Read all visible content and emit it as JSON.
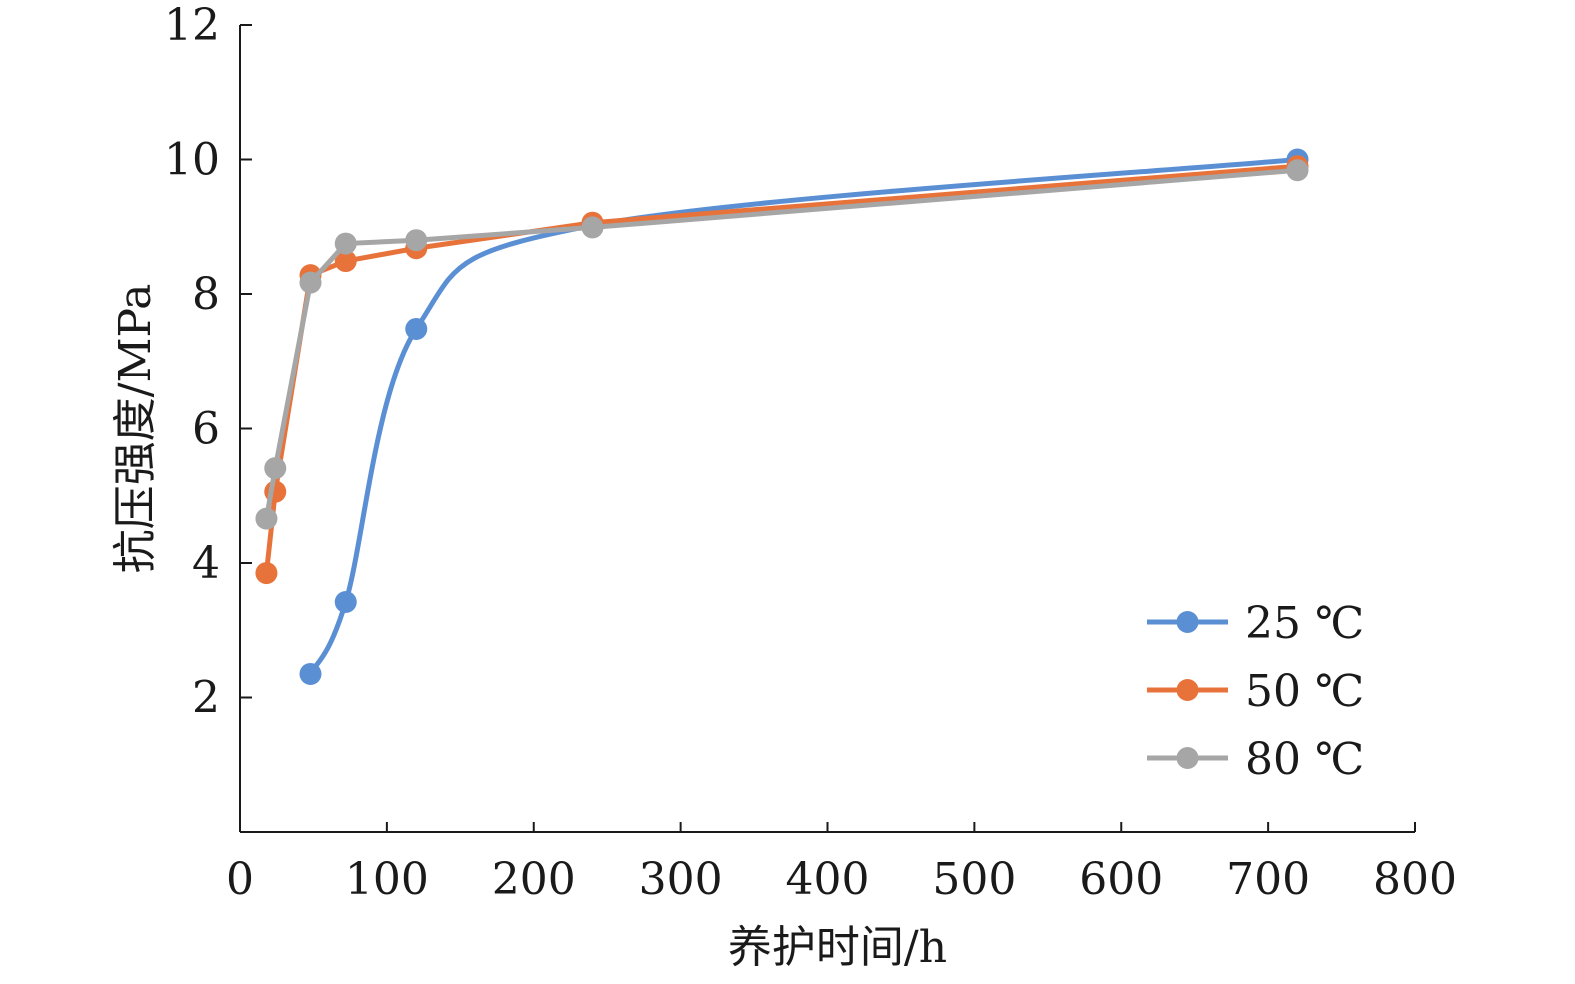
{
  "chart_data": {
    "type": "line",
    "title": "",
    "xlabel": "养护时间/h",
    "ylabel": "抗压强度/MPa",
    "xlim": [
      0,
      800
    ],
    "ylim": [
      0,
      12
    ],
    "xticks": [
      0,
      100,
      200,
      300,
      400,
      500,
      600,
      700,
      800
    ],
    "yticks": [
      2,
      4,
      6,
      8,
      10,
      12
    ],
    "grid": false,
    "legend_position": "bottom-right",
    "series": [
      {
        "name": "25 ℃",
        "color": "#5b8fd4",
        "smooth": true,
        "x": [
          48,
          72,
          120,
          240,
          720
        ],
        "y": [
          2.35,
          3.42,
          7.48,
          9.02,
          10.0
        ]
      },
      {
        "name": "50 ℃",
        "color": "#e8733a",
        "smooth": false,
        "x": [
          18,
          24,
          48,
          72,
          120,
          240,
          720
        ],
        "y": [
          3.85,
          5.06,
          8.28,
          8.49,
          8.68,
          9.06,
          9.9
        ]
      },
      {
        "name": "80 ℃",
        "color": "#a6a6a6",
        "smooth": false,
        "x": [
          18,
          24,
          48,
          72,
          120,
          240,
          720
        ],
        "y": [
          4.66,
          5.41,
          8.17,
          8.75,
          8.8,
          8.99,
          9.84
        ]
      }
    ]
  }
}
